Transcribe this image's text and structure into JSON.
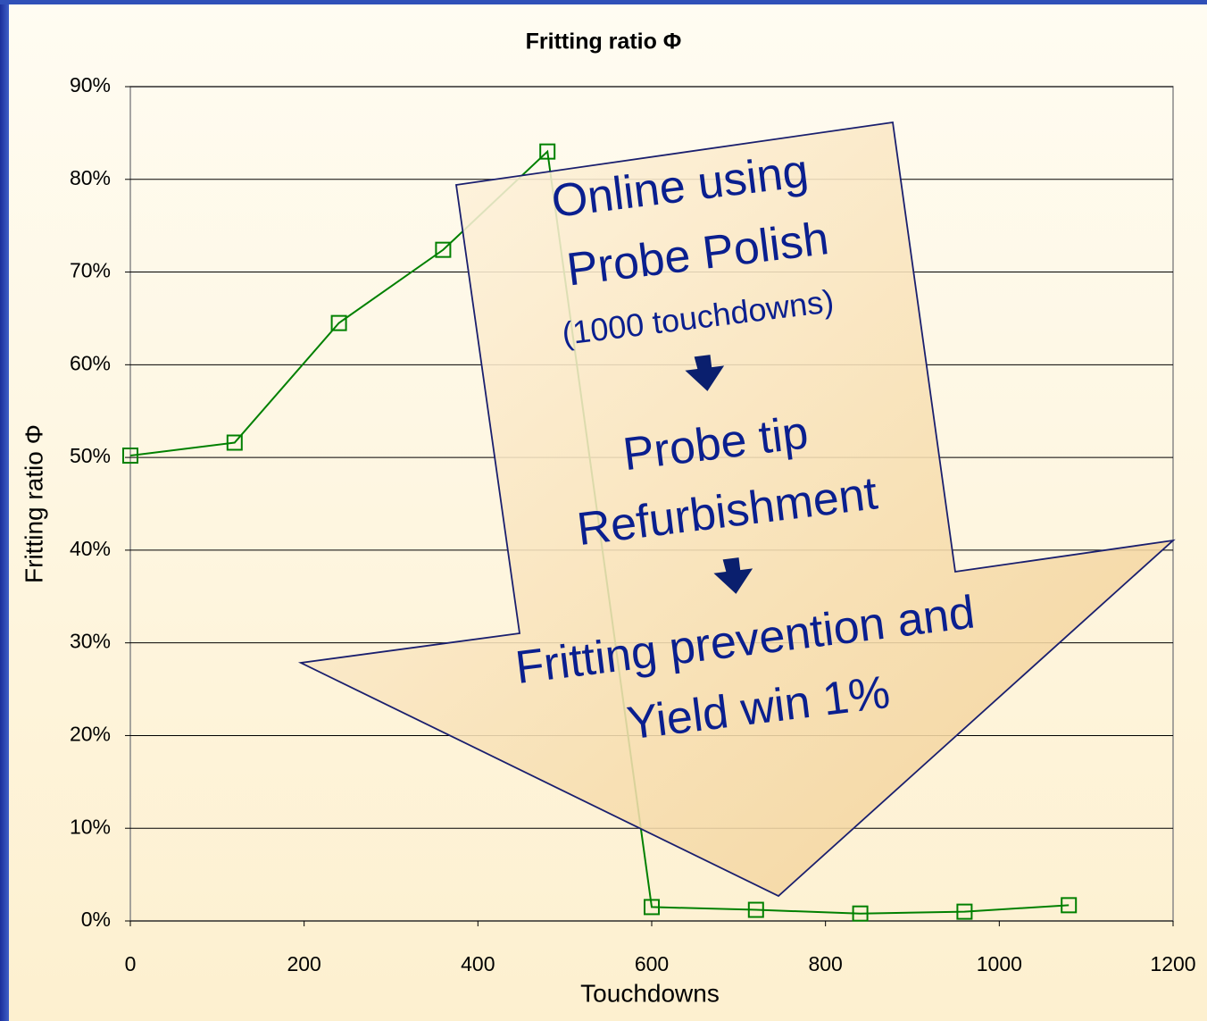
{
  "chart_data": {
    "type": "line",
    "title": "Fritting ratio Φ",
    "x_label": "Touchdowns",
    "y_label": "Fritting ratio Φ",
    "x": [
      0,
      120,
      240,
      360,
      480,
      600,
      720,
      840,
      960,
      1080
    ],
    "series": [
      {
        "name": "Fritting ratio Φ",
        "color": "#008000",
        "values": [
          50.2,
          51.6,
          64.5,
          72.4,
          83.0,
          1.5,
          1.2,
          0.8,
          1.0,
          1.7
        ]
      }
    ],
    "xlim": [
      0,
      1200
    ],
    "xticks": [
      0,
      200,
      400,
      600,
      800,
      1000,
      1200
    ],
    "ylim": [
      0,
      90
    ],
    "yticks": [
      {
        "value": 0,
        "label": "0%"
      },
      {
        "value": 10,
        "label": "10%"
      },
      {
        "value": 20,
        "label": "20%"
      },
      {
        "value": 30,
        "label": "30%"
      },
      {
        "value": 40,
        "label": "40%"
      },
      {
        "value": 50,
        "label": "50%"
      },
      {
        "value": 60,
        "label": "60%"
      },
      {
        "value": 70,
        "label": "70%"
      },
      {
        "value": 80,
        "label": "80%"
      },
      {
        "value": 90,
        "label": "90%"
      }
    ],
    "grid": true,
    "annotations": [
      "Online using",
      "Probe Polish",
      "(1000 touchdowns)",
      "Probe tip",
      "Refurbishment",
      "Fritting prevention and",
      "Yield win 1%"
    ]
  }
}
